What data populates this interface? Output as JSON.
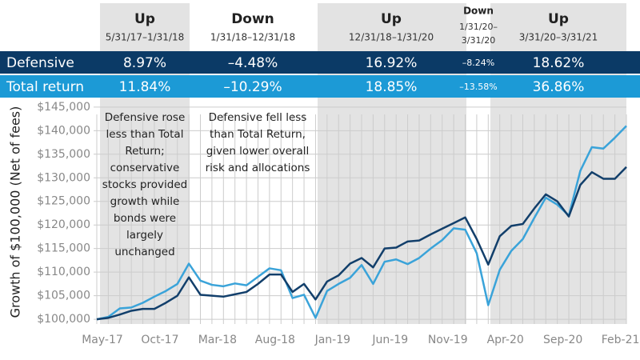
{
  "table": {
    "row_labels": [
      "Defensive",
      "Total return"
    ],
    "columns": [
      {
        "direction": "Up",
        "range": [
          "5/31/17–1/31/18"
        ],
        "cells": [
          "8.97%",
          "11.84%"
        ]
      },
      {
        "direction": "Down",
        "range": [
          "1/31/18–12/31/18"
        ],
        "cells": [
          "–4.48%",
          "–10.29%"
        ]
      },
      {
        "direction": "Up",
        "range": [
          "12/31/18–1/31/20"
        ],
        "cells": [
          "16.92%",
          "18.85%"
        ]
      },
      {
        "direction": "Down",
        "range": [
          "1/31/20–",
          "3/31/20"
        ],
        "cells": [
          "–8.24%",
          "–13.58%"
        ]
      },
      {
        "direction": "Up",
        "range": [
          "3/31/20–3/31/21"
        ],
        "cells": [
          "18.62%",
          "36.86%"
        ]
      }
    ]
  },
  "chart_data": {
    "type": "line",
    "y_label": "Growth of $100,000 (Net of fees)",
    "annotations": [
      [
        "Defensive rose",
        "less than Total",
        "Return;",
        "conservative",
        "stocks provided",
        "growth while",
        "bonds were",
        "largely",
        "unchanged"
      ],
      [
        "Defensive fell less",
        "than Total Return,",
        "given lower overall",
        "risk and allocations"
      ]
    ],
    "categories": [
      "May-17",
      null,
      null,
      null,
      null,
      "Oct-17",
      null,
      null,
      null,
      null,
      "Mar-18",
      null,
      null,
      null,
      null,
      "Aug-18",
      null,
      null,
      null,
      null,
      "Jan-19",
      null,
      null,
      null,
      null,
      "Jun-19",
      null,
      null,
      null,
      null,
      "Nov-19",
      null,
      null,
      null,
      null,
      "Apr-20",
      null,
      null,
      null,
      null,
      "Sep-20",
      null,
      null,
      null,
      null,
      "Feb-21",
      null
    ],
    "series": [
      {
        "name": "Total return",
        "color": "#3aa3d9",
        "values": [
          100000,
          100500,
          102300,
          102500,
          103500,
          104800,
          106000,
          107500,
          111800,
          108200,
          107300,
          107000,
          107600,
          107200,
          109000,
          110800,
          110400,
          104500,
          105200,
          100300,
          106000,
          107500,
          108800,
          111500,
          107500,
          112200,
          112700,
          111700,
          113000,
          115000,
          116800,
          119300,
          119000,
          114000,
          103000,
          110500,
          114500,
          117000,
          121500,
          125800,
          124300,
          122000,
          131500,
          136500,
          136200,
          138500,
          141000
        ]
      },
      {
        "name": "Defensive",
        "color": "#123f6b",
        "values": [
          100000,
          100300,
          101000,
          101800,
          102200,
          102200,
          103500,
          105000,
          108900,
          105200,
          105000,
          104800,
          105300,
          105800,
          107500,
          109500,
          109500,
          105800,
          107500,
          104200,
          108000,
          109300,
          111800,
          113000,
          111000,
          115000,
          115200,
          116500,
          116700,
          118000,
          119200,
          120400,
          121600,
          117000,
          111600,
          117600,
          119800,
          120200,
          123500,
          126500,
          125000,
          121800,
          128500,
          131200,
          129800,
          129800,
          132300
        ]
      }
    ],
    "ylim": [
      99000,
      146500
    ],
    "yticks": [
      {
        "value": 100000,
        "label": "$100,000"
      },
      {
        "value": 105000,
        "label": "$105,000"
      },
      {
        "value": 110000,
        "label": "$110,000"
      },
      {
        "value": 115000,
        "label": "$115,000"
      },
      {
        "value": 120000,
        "label": "$120,000"
      },
      {
        "value": 125000,
        "label": "$125,000"
      },
      {
        "value": 130000,
        "label": "$130,000"
      },
      {
        "value": 135000,
        "label": "$135,000"
      },
      {
        "value": 140000,
        "label": "$140,000"
      },
      {
        "value": 145000,
        "label": "$145,000"
      }
    ],
    "grid": true
  }
}
